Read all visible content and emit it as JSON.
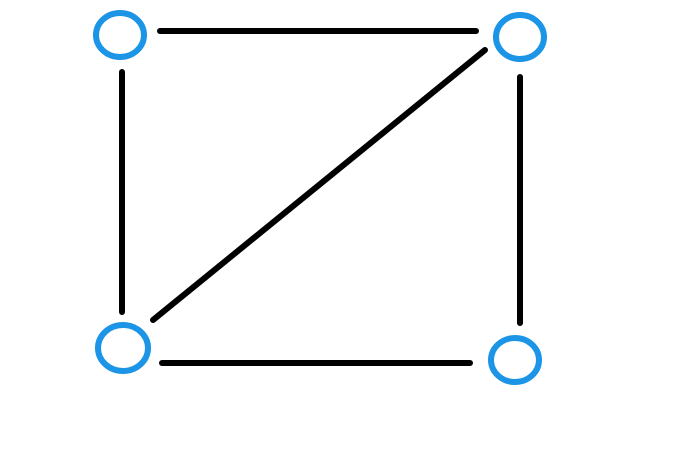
{
  "graph": {
    "nodes": [
      {
        "id": "top-left"
      },
      {
        "id": "top-right"
      },
      {
        "id": "bottom-left"
      },
      {
        "id": "bottom-right"
      }
    ],
    "edges": [
      {
        "from": "top-left",
        "to": "top-right"
      },
      {
        "from": "top-left",
        "to": "bottom-left"
      },
      {
        "from": "top-right",
        "to": "bottom-right"
      },
      {
        "from": "bottom-left",
        "to": "bottom-right"
      },
      {
        "from": "bottom-left",
        "to": "top-right"
      }
    ]
  },
  "colors": {
    "background": "#ffffff",
    "node_stroke": "#1c95e6",
    "node_fill": "#ffffff",
    "edge": "#000000"
  }
}
